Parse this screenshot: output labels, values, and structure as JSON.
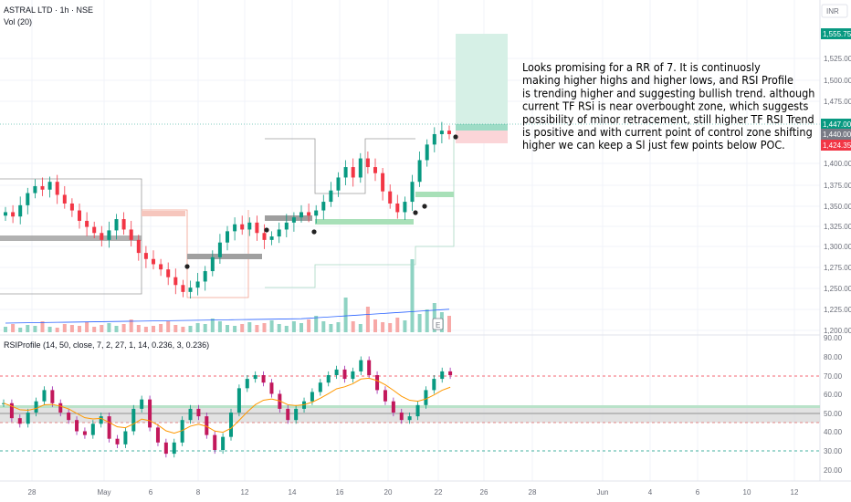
{
  "header": {
    "symbol_line": "ASTRAL LTD · 1h · NSE",
    "volume_label": "Vol (20)",
    "currency": "INR"
  },
  "price_axis": {
    "ticks": [
      "1,525.00",
      "1,500.00",
      "1,475.00",
      "1,400.00",
      "1,375.00",
      "1,350.00",
      "1,325.00",
      "1,300.00",
      "1,275.00",
      "1,250.00",
      "1,225.00",
      "1,200.00"
    ],
    "badges": [
      {
        "text": "1,555.75",
        "color": "#089981"
      },
      {
        "text": "1,447.00",
        "color": "#089981"
      },
      {
        "text": "1,440.00",
        "color": "#787b86"
      },
      {
        "text": "1,424.35",
        "color": "#f23645"
      }
    ]
  },
  "rsi_panel": {
    "label": "RSIProfile (14, 50, close, 7, 2, 27, 1, 14, 0.236, 3, 0.236)",
    "ticks": [
      "90.00",
      "80.00",
      "70.00",
      "60.00",
      "50.00",
      "40.00",
      "30.00",
      "20.00"
    ]
  },
  "time_axis": {
    "labels": [
      "28",
      "May",
      "6",
      "8",
      "12",
      "14",
      "16",
      "20",
      "22",
      "26",
      "28",
      "Jun",
      "4",
      "6",
      "10",
      "12"
    ]
  },
  "annotation": {
    "lines": [
      "Looks promising for a RR of 7. It is continuosly",
      "making higher highs and higher lows, and RSI Profile",
      "is trending higher and suggesting bullish trend. although",
      "current TF RSi is near overbought zone, which suggests",
      "possibility of minor retracement, still higher TF RSI Trend",
      "is positive and with current point of control zone shifting",
      "higher we can keep a Sl just few points below POC."
    ]
  },
  "colors": {
    "up": "#089981",
    "down": "#f23645",
    "rsi_line": "#089981",
    "rsi_ma": "#ff9800",
    "target_zone": "#d6f0e6",
    "stop_zone": "#fbd5d8",
    "grid": "#f0f3fa"
  },
  "chart_data": {
    "type": "candlestick",
    "timeframe": "1h",
    "price_range": [
      1195,
      1570
    ],
    "rsi_range": [
      17,
      92
    ],
    "levels": {
      "target": 1555.75,
      "entry": 1447.0,
      "last": 1440.0,
      "stop": 1424.35
    },
    "rsi_bands": {
      "upper": 70,
      "mid_zone": [
        46,
        54
      ],
      "lower": 30
    },
    "candles_close": [
      1350,
      1345,
      1358,
      1372,
      1380,
      1376,
      1385,
      1370,
      1360,
      1352,
      1340,
      1333,
      1326,
      1318,
      1329,
      1342,
      1330,
      1318,
      1303,
      1296,
      1290,
      1284,
      1275,
      1266,
      1258,
      1263,
      1270,
      1282,
      1298,
      1315,
      1328,
      1336,
      1330,
      1338,
      1326,
      1318,
      1322,
      1330,
      1338,
      1344,
      1350,
      1346,
      1352,
      1362,
      1375,
      1390,
      1402,
      1390,
      1412,
      1402,
      1395,
      1374,
      1360,
      1350,
      1362,
      1385,
      1410,
      1428,
      1440,
      1444,
      1440
    ],
    "rsi_values": [
      55,
      47,
      44,
      50,
      56,
      62,
      55,
      50,
      46,
      40,
      38,
      44,
      48,
      36,
      33,
      40,
      52,
      57,
      42,
      34,
      28,
      34,
      46,
      52,
      48,
      38,
      30,
      37,
      50,
      63,
      68,
      70,
      66,
      60,
      52,
      46,
      52,
      56,
      61,
      66,
      70,
      73,
      68,
      72,
      78,
      70,
      62,
      56,
      50,
      46,
      48,
      54,
      62,
      68,
      72,
      70
    ]
  }
}
